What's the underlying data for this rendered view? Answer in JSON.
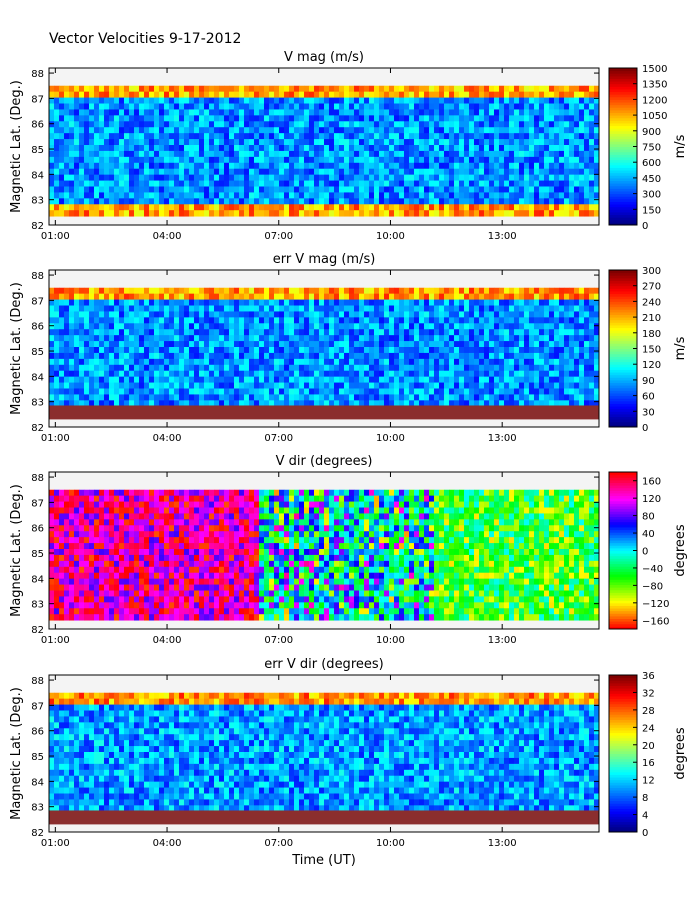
{
  "figure_title": "Vector Velocities 9-17-2012",
  "shared": {
    "ylabel": "Magnetic Lat. (Deg.)",
    "xlabel": "Time (UT)",
    "x_ticks": [
      "01:00",
      "04:00",
      "07:00",
      "10:00",
      "13:00"
    ],
    "y_ticks": [
      "82",
      "83",
      "84",
      "85",
      "86",
      "87",
      "88"
    ]
  },
  "chart_data": [
    {
      "type": "heatmap",
      "title": "V mag (m/s)",
      "xlabel": "",
      "ylabel": "Magnetic Lat. (Deg.)",
      "x_range_hours": [
        0.83,
        15.6
      ],
      "ylim": [
        82,
        88.2
      ],
      "colormap": "jet",
      "colorbar": {
        "label": "m/s",
        "min": 0,
        "max": 1500,
        "ticks": [
          "0",
          "150",
          "300",
          "450",
          "600",
          "750",
          "900",
          "1050",
          "1200",
          "1350",
          "1500"
        ]
      },
      "typical_value": 400
    },
    {
      "type": "heatmap",
      "title": "err V mag (m/s)",
      "xlabel": "",
      "ylabel": "Magnetic Lat. (Deg.)",
      "x_range_hours": [
        0.83,
        15.6
      ],
      "ylim": [
        82,
        88.2
      ],
      "colormap": "jet",
      "colorbar": {
        "label": "m/s",
        "min": 0,
        "max": 300,
        "ticks": [
          "0",
          "30",
          "60",
          "90",
          "120",
          "150",
          "180",
          "210",
          "240",
          "270",
          "300"
        ]
      },
      "typical_value": 80
    },
    {
      "type": "heatmap",
      "title": "V dir (degrees)",
      "xlabel": "",
      "ylabel": "Magnetic Lat. (Deg.)",
      "x_range_hours": [
        0.83,
        15.6
      ],
      "ylim": [
        82,
        88.2
      ],
      "colormap": "hsv",
      "colorbar": {
        "label": "degrees",
        "min": -180,
        "max": 180,
        "ticks": [
          "−160",
          "−120",
          "−80",
          "−40",
          "0",
          "40",
          "80",
          "120",
          "160"
        ]
      },
      "typical_value": 150
    },
    {
      "type": "heatmap",
      "title": "err V dir (degrees)",
      "xlabel": "Time (UT)",
      "ylabel": "Magnetic Lat. (Deg.)",
      "x_range_hours": [
        0.83,
        15.6
      ],
      "ylim": [
        82,
        88.2
      ],
      "colormap": "jet",
      "colorbar": {
        "label": "degrees",
        "min": 0,
        "max": 36,
        "ticks": [
          "0",
          "4",
          "8",
          "12",
          "16",
          "20",
          "24",
          "28",
          "32",
          "36"
        ]
      },
      "typical_value": 10
    }
  ],
  "colors": {
    "background_panel": "#f4f4f4",
    "saturated_low_band": "#8b2e2e",
    "frame": "#000000"
  }
}
